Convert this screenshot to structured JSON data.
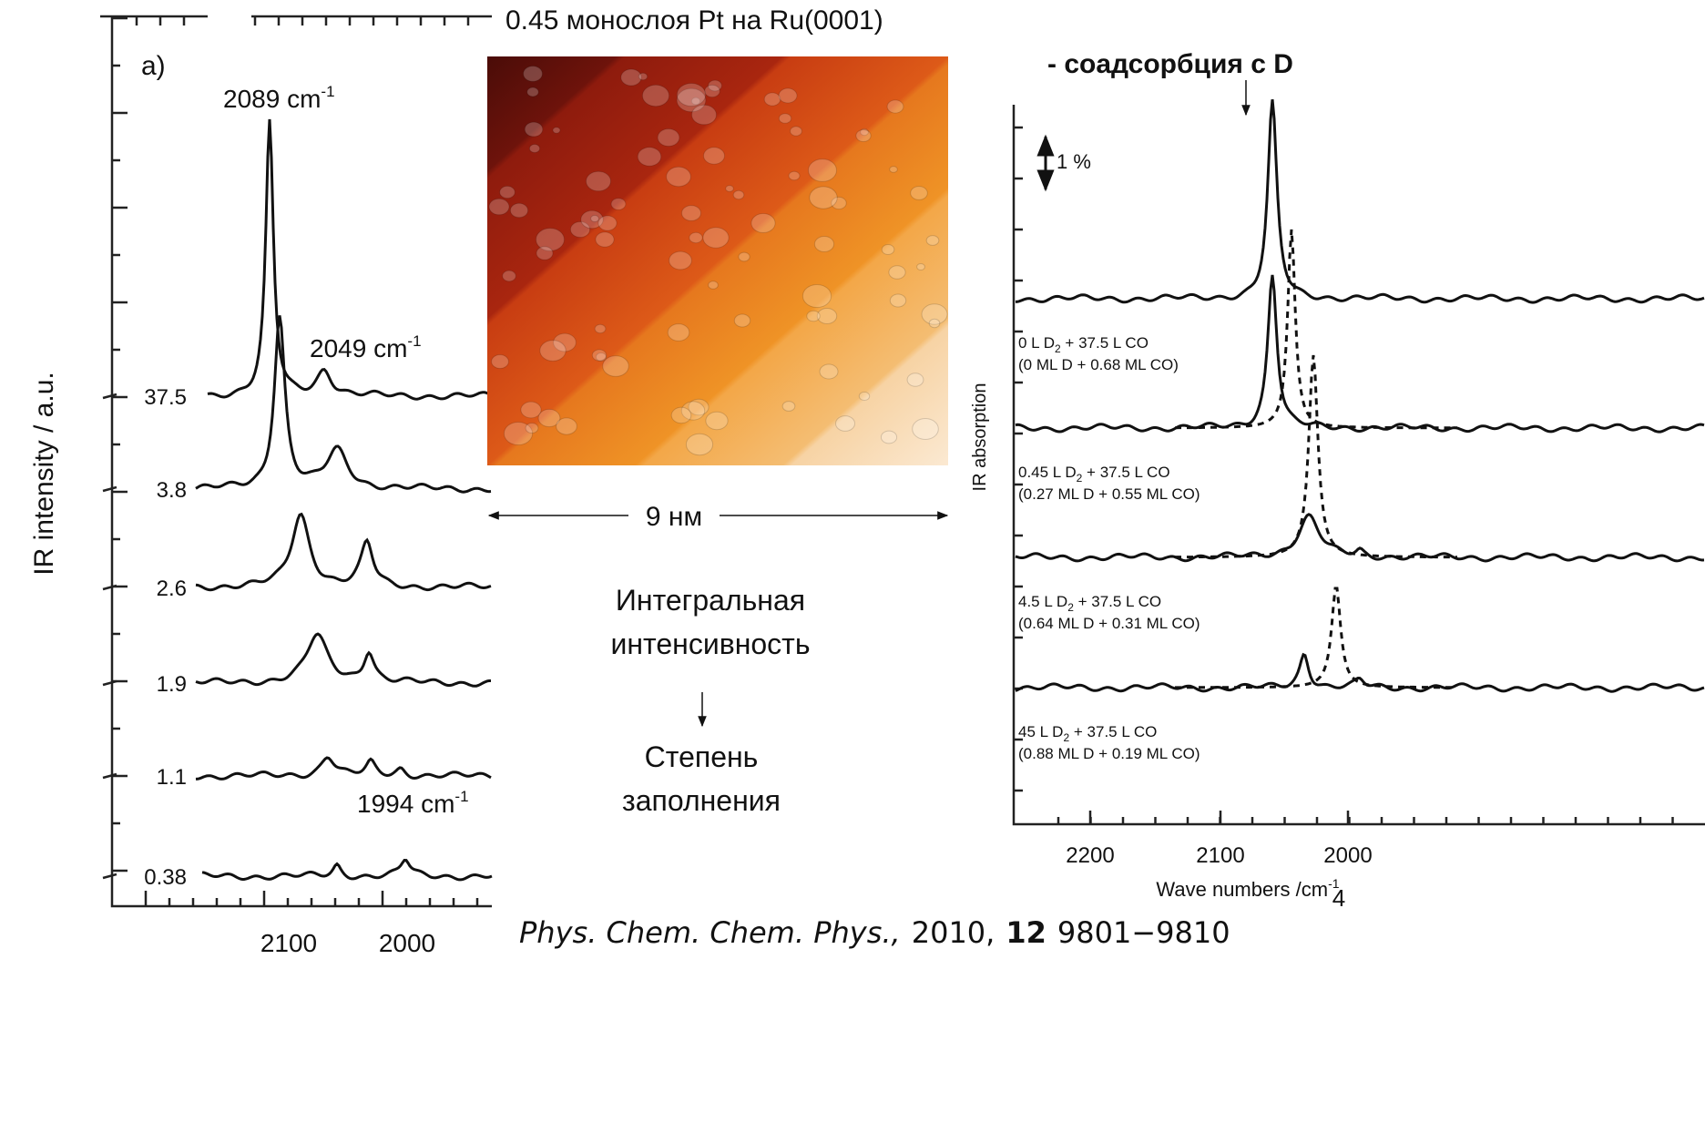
{
  "left_plot": {
    "panel_label": "a)",
    "y_label": "IR intensity / a.u.",
    "x_ticks": [
      "2100",
      "2000"
    ],
    "peak_labels": [
      {
        "text": "2089 cm",
        "sup": "-1"
      },
      {
        "text": "2049 cm",
        "sup": "-1"
      },
      {
        "text": "1994 cm",
        "sup": "-1"
      }
    ],
    "trace_labels": [
      "37.5",
      "3.8",
      "2.6",
      "1.9",
      "1.1",
      "0.38"
    ]
  },
  "image": {
    "title": "0.45 монослоя Pt на Ru(0001)",
    "scale": "9 нм"
  },
  "notes": [
    "Интегральная",
    "интенсивность",
    "Степень",
    "заполнения"
  ],
  "right_plot": {
    "heading": "- соадсорбция с D",
    "scale_bar": "1 %",
    "y_label": "IR absorption",
    "x_label": "Wave numbers /cm",
    "x_label_sup": "-1",
    "x_ticks": [
      "2200",
      "2100",
      "2000"
    ],
    "traces": [
      {
        "line1": [
          "0 L D",
          "2",
          " + 37.5 L CO"
        ],
        "line2": "(0 ML D + 0.68 ML CO)"
      },
      {
        "line1": [
          "0.45 L D",
          "2",
          " + 37.5 L CO"
        ],
        "line2": "(0.27 ML D + 0.55 ML CO)"
      },
      {
        "line1": [
          "4.5 L D",
          "2",
          " + 37.5 L CO"
        ],
        "line2": "(0.64 ML D + 0.31 ML CO)"
      },
      {
        "line1": [
          "45 L D",
          "2",
          " + 37.5 L CO"
        ],
        "line2": "(0.88 ML D + 0.19 ML CO)"
      }
    ]
  },
  "page_number": "4",
  "citation": {
    "journal": "Phys. Chem. Chem. Phys.,",
    "year": "2010,",
    "volume": "12",
    "pages": "9801−9810"
  }
}
